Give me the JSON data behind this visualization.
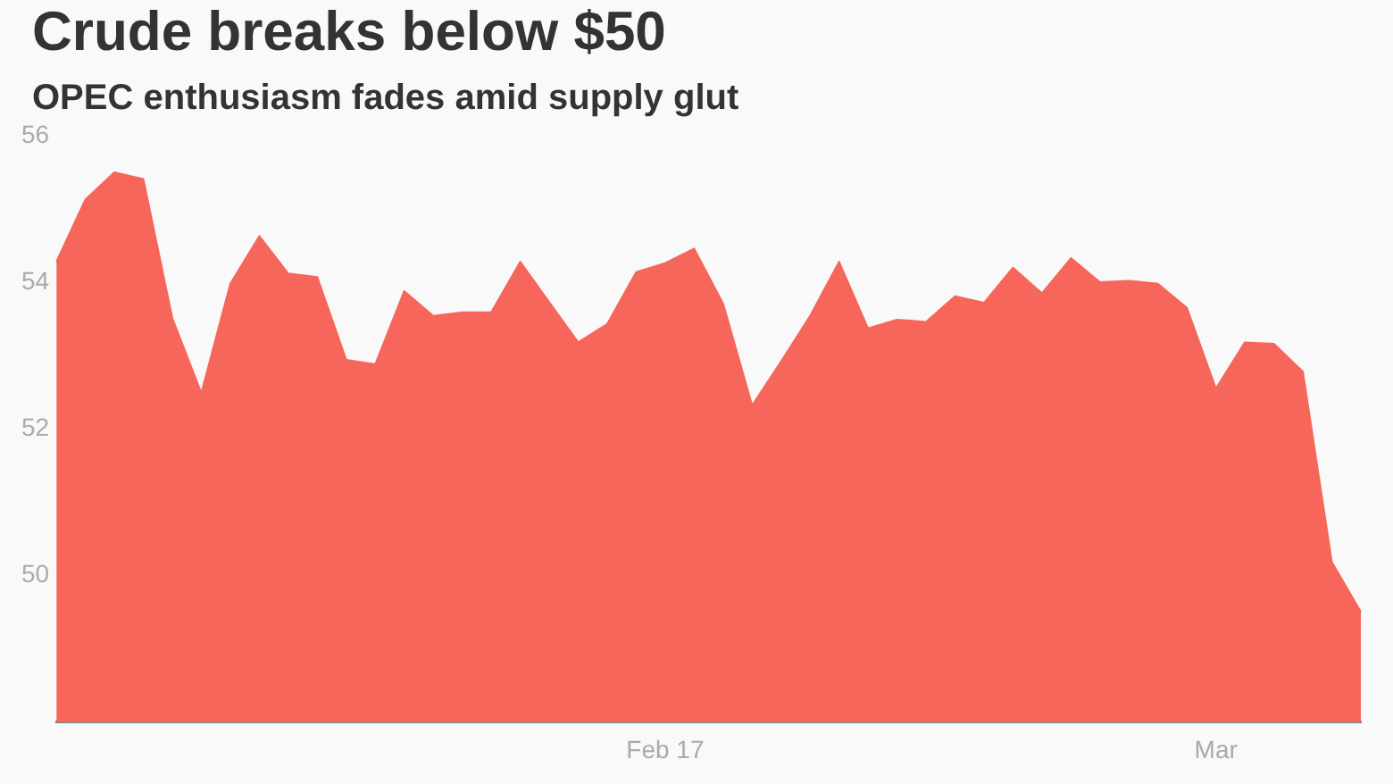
{
  "chart_data": {
    "type": "area",
    "title": "Crude breaks below $50",
    "subtitle": "OPEC enthusiasm fades amid supply glut",
    "categories": [
      null,
      null,
      null,
      null,
      null,
      null,
      null,
      null,
      null,
      null,
      null,
      null,
      null,
      null,
      null,
      null,
      null,
      null,
      null,
      null,
      null,
      "Feb 17",
      null,
      null,
      null,
      null,
      null,
      null,
      null,
      null,
      null,
      null,
      null,
      null,
      null,
      null,
      null,
      null,
      null,
      null,
      "Mar",
      null,
      null,
      null,
      null,
      null
    ],
    "values": [
      54.28,
      55.13,
      55.5,
      55.41,
      53.51,
      52.49,
      53.98,
      54.63,
      54.12,
      54.07,
      52.94,
      52.88,
      53.88,
      53.54,
      53.59,
      53.59,
      54.28,
      53.73,
      53.18,
      53.43,
      54.14,
      54.26,
      54.46,
      53.71,
      52.32,
      52.92,
      53.54,
      54.28,
      53.37,
      53.49,
      53.46,
      53.81,
      53.72,
      54.2,
      53.85,
      54.33,
      54.0,
      54.02,
      53.98,
      53.65,
      52.55,
      53.18,
      53.16,
      52.78,
      50.18,
      49.5
    ],
    "color": "#f7665a",
    "ylim": [
      48,
      56
    ],
    "yticks": [
      50,
      52,
      54,
      56
    ],
    "grid": false,
    "legend": false
  }
}
